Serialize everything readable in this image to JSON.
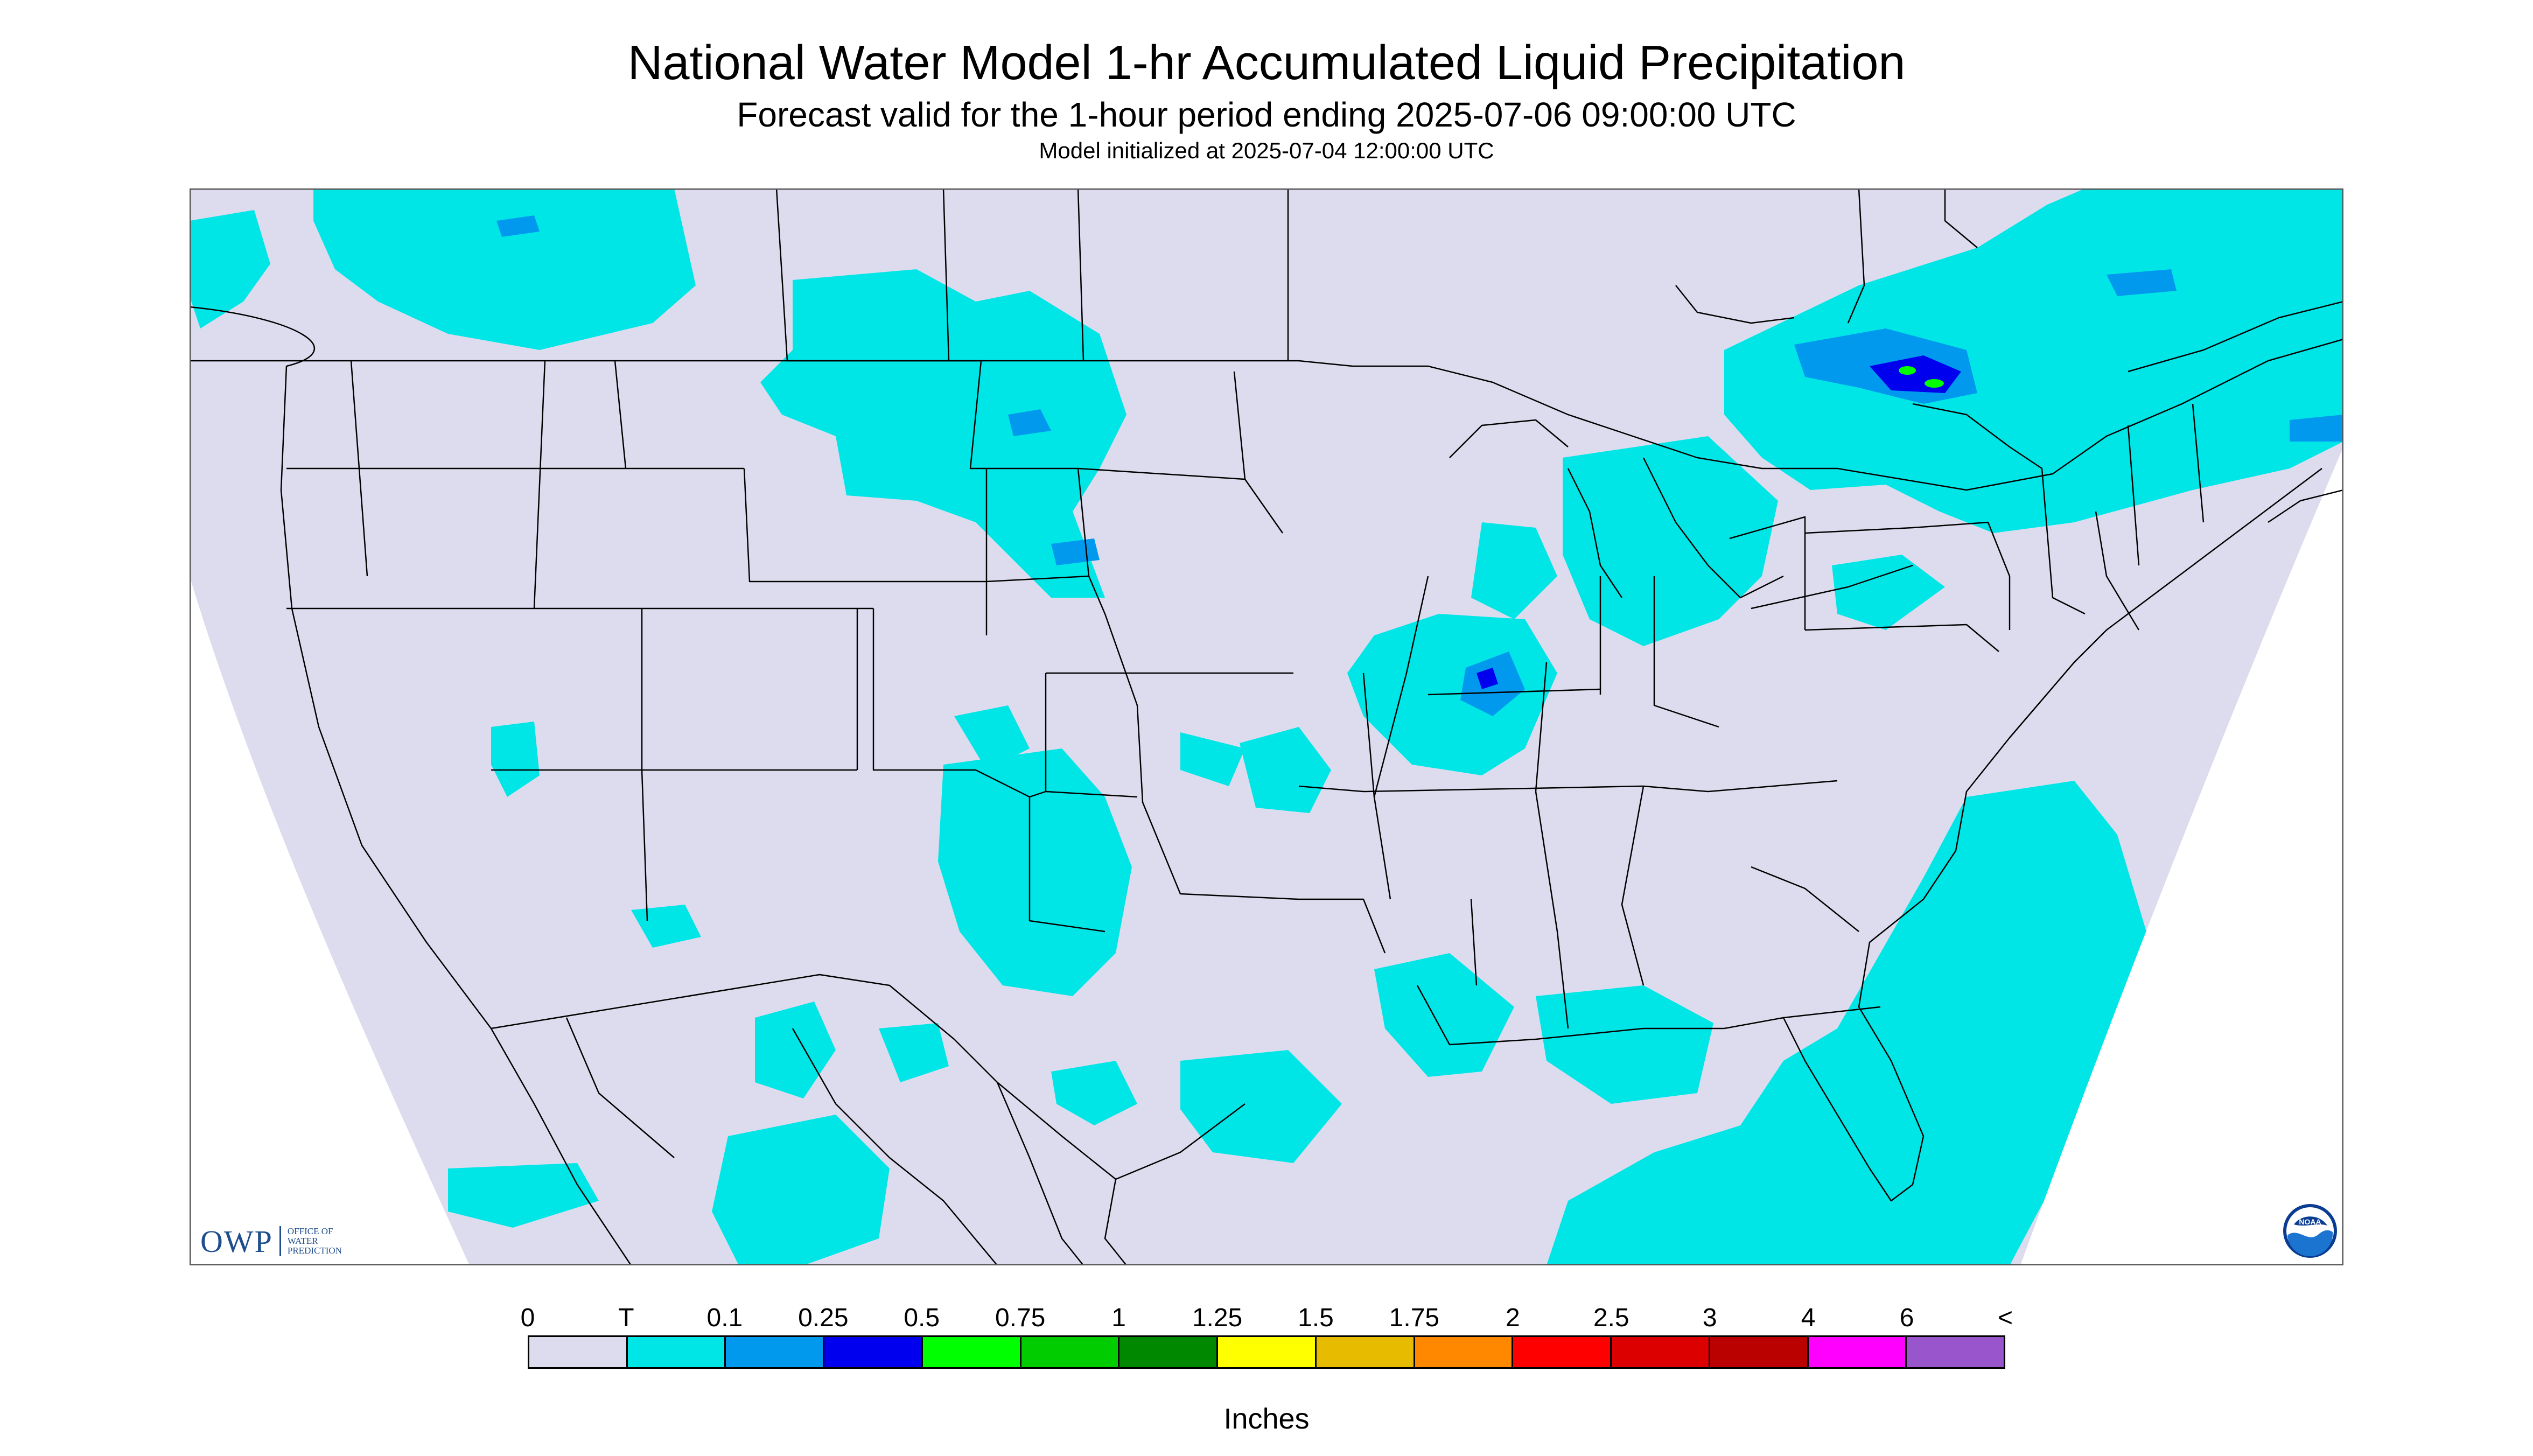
{
  "header": {
    "title": "National Water Model 1-hr Accumulated Liquid Precipitation",
    "subtitle": "Forecast valid for the 1-hour period ending 2025-07-06 09:00:00 UTC",
    "init": "Model initialized at 2025-07-04 12:00:00 UTC"
  },
  "map": {
    "background_color": "#dcdcee",
    "outside_domain_color": "#ffffff",
    "border_color": "#000000"
  },
  "branding": {
    "owp_mark": "OWP",
    "owp_name": "OFFICE OF\nWATER\nPREDICTION",
    "noaa_label": "NOAA"
  },
  "legend": {
    "ticks": [
      "0",
      "T",
      "0.1",
      "0.25",
      "0.5",
      "0.75",
      "1",
      "1.25",
      "1.5",
      "1.75",
      "2",
      "2.5",
      "3",
      "4",
      "6",
      "<"
    ],
    "colors": [
      "#dcdcee",
      "#00e6e6",
      "#0099ee",
      "#0000ee",
      "#00ff00",
      "#00cc00",
      "#008800",
      "#ffff00",
      "#e6bb00",
      "#ff8800",
      "#ff0000",
      "#dd0000",
      "#bb0000",
      "#ff00ff",
      "#9955cc"
    ],
    "units": "Inches"
  }
}
